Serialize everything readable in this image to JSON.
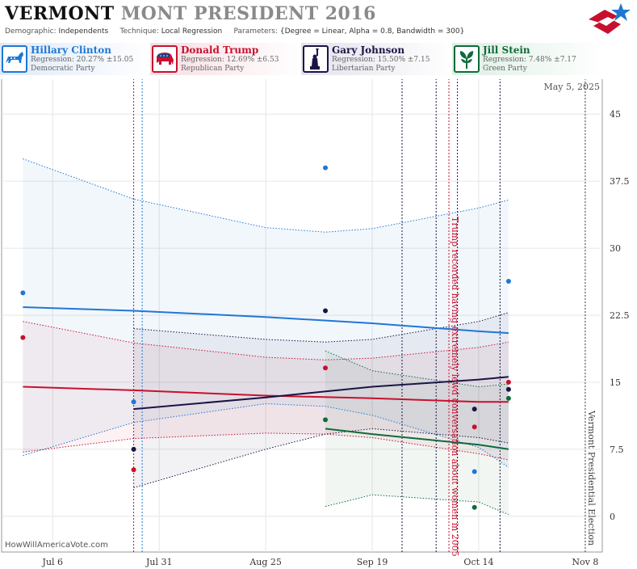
{
  "header": {
    "state": "VERMONT",
    "abbr": "MONT",
    "rest": "PRESIDENT 2016",
    "demographic_label": "Demographic:",
    "demographic": "Independents",
    "technique_label": "Technique:",
    "technique": "Local Regression",
    "parameters_label": "Parameters:",
    "parameters": "{Degree = Linear, Alpha = 0.8, Bandwidth = 300}",
    "date": "May 5, 2025",
    "watermark": "HowWillAmericaVote.com"
  },
  "candidates": [
    {
      "name": "Hillary Clinton",
      "regression": "Regression: 20.27% ±15.05",
      "party": "Democratic Party",
      "color": "#1f77d4",
      "icon": "donkey-icon"
    },
    {
      "name": "Donald Trump",
      "regression": "Regression: 12.69% ±6.53",
      "party": "Republican Party",
      "color": "#c8102e",
      "icon": "elephant-icon"
    },
    {
      "name": "Gary Johnson",
      "regression": "Regression: 15.50% ±7.15",
      "party": "Libertarian Party",
      "color": "#1a1446",
      "icon": "statue-of-liberty-icon"
    },
    {
      "name": "Jill Stein",
      "regression": "Regression: 7.48% ±7.17",
      "party": "Green Party",
      "color": "#0e6b3a",
      "icon": "leaf-icon"
    }
  ],
  "chart_data": {
    "type": "scatter",
    "x_axis": {
      "type": "date",
      "range": [
        "2016-06-24",
        "2016-11-12"
      ],
      "ticks": [
        "Jul 6",
        "Jul 31",
        "Aug 25",
        "Sep 19",
        "Oct 14",
        "Nov 8"
      ]
    },
    "y_axis": {
      "range": [
        -4,
        49
      ],
      "ticks": [
        "0",
        "7.5",
        "15",
        "22.5",
        "30",
        "37.5",
        "45"
      ]
    },
    "grid": true,
    "series": [
      {
        "name": "Hillary Clinton",
        "color": "#1f77d4",
        "points": [
          [
            "2016-06-29",
            25
          ],
          [
            "2016-07-25",
            12.8
          ],
          [
            "2016-09-08",
            39
          ],
          [
            "2016-10-13",
            5
          ],
          [
            "2016-10-21",
            26.3
          ]
        ],
        "trend": [
          [
            "2016-06-29",
            23.4
          ],
          [
            "2016-07-25",
            23
          ],
          [
            "2016-08-25",
            22.3
          ],
          [
            "2016-09-19",
            21.6
          ],
          [
            "2016-10-14",
            20.7
          ],
          [
            "2016-10-21",
            20.5
          ]
        ],
        "upper": [
          [
            "2016-06-29",
            40
          ],
          [
            "2016-07-25",
            35.5
          ],
          [
            "2016-08-25",
            32.3
          ],
          [
            "2016-09-08",
            31.8
          ],
          [
            "2016-09-19",
            32.2
          ],
          [
            "2016-10-14",
            34.5
          ],
          [
            "2016-10-21",
            35.4
          ]
        ],
        "lower": [
          [
            "2016-06-29",
            6.8
          ],
          [
            "2016-07-25",
            10.5
          ],
          [
            "2016-08-25",
            12.6
          ],
          [
            "2016-09-08",
            12.3
          ],
          [
            "2016-09-19",
            11.3
          ],
          [
            "2016-10-14",
            7.7
          ],
          [
            "2016-10-21",
            5.5
          ]
        ]
      },
      {
        "name": "Donald Trump",
        "color": "#c8102e",
        "points": [
          [
            "2016-06-29",
            20
          ],
          [
            "2016-07-25",
            5.2
          ],
          [
            "2016-09-08",
            16.6
          ],
          [
            "2016-10-13",
            10
          ],
          [
            "2016-10-21",
            15
          ]
        ],
        "trend": [
          [
            "2016-06-29",
            14.5
          ],
          [
            "2016-07-25",
            14.1
          ],
          [
            "2016-08-25",
            13.5
          ],
          [
            "2016-09-19",
            13.2
          ],
          [
            "2016-10-14",
            12.8
          ],
          [
            "2016-10-21",
            12.8
          ]
        ],
        "upper": [
          [
            "2016-06-29",
            21.8
          ],
          [
            "2016-07-25",
            19.4
          ],
          [
            "2016-08-25",
            17.8
          ],
          [
            "2016-09-08",
            17.5
          ],
          [
            "2016-09-19",
            17.7
          ],
          [
            "2016-10-14",
            18.9
          ],
          [
            "2016-10-21",
            19.5
          ]
        ],
        "lower": [
          [
            "2016-06-29",
            7.2
          ],
          [
            "2016-07-25",
            8.7
          ],
          [
            "2016-08-25",
            9.3
          ],
          [
            "2016-09-08",
            9.2
          ],
          [
            "2016-09-19",
            8.8
          ],
          [
            "2016-10-14",
            7
          ],
          [
            "2016-10-21",
            6.3
          ]
        ]
      },
      {
        "name": "Gary Johnson",
        "color": "#1a1446",
        "points": [
          [
            "2016-07-25",
            7.5
          ],
          [
            "2016-09-08",
            23
          ],
          [
            "2016-10-13",
            12
          ],
          [
            "2016-10-21",
            14.2
          ]
        ],
        "trend": [
          [
            "2016-07-25",
            12
          ],
          [
            "2016-08-25",
            13.3
          ],
          [
            "2016-09-19",
            14.5
          ],
          [
            "2016-10-14",
            15.3
          ],
          [
            "2016-10-21",
            15.6
          ]
        ],
        "upper": [
          [
            "2016-07-25",
            21
          ],
          [
            "2016-08-25",
            19.8
          ],
          [
            "2016-09-08",
            19.5
          ],
          [
            "2016-09-19",
            19.8
          ],
          [
            "2016-10-14",
            21.8
          ],
          [
            "2016-10-21",
            22.8
          ]
        ],
        "lower": [
          [
            "2016-07-25",
            3.2
          ],
          [
            "2016-08-25",
            7.5
          ],
          [
            "2016-09-08",
            9.2
          ],
          [
            "2016-09-19",
            9.8
          ],
          [
            "2016-10-14",
            8.8
          ],
          [
            "2016-10-21",
            8.2
          ]
        ]
      },
      {
        "name": "Jill Stein",
        "color": "#0e6b3a",
        "points": [
          [
            "2016-09-08",
            10.8
          ],
          [
            "2016-10-13",
            1
          ],
          [
            "2016-10-21",
            13.2
          ]
        ],
        "trend": [
          [
            "2016-09-08",
            9.8
          ],
          [
            "2016-09-19",
            9.2
          ],
          [
            "2016-10-14",
            8
          ],
          [
            "2016-10-21",
            7.5
          ]
        ],
        "upper": [
          [
            "2016-09-08",
            18.5
          ],
          [
            "2016-09-19",
            16.3
          ],
          [
            "2016-10-14",
            14.5
          ],
          [
            "2016-10-21",
            14.8
          ]
        ],
        "lower": [
          [
            "2016-09-08",
            1.1
          ],
          [
            "2016-09-19",
            2.4
          ],
          [
            "2016-10-14",
            1.6
          ],
          [
            "2016-10-21",
            0.2
          ]
        ]
      }
    ],
    "event_lines": [
      {
        "date": "2016-07-25",
        "color": "#c8102e"
      },
      {
        "date": "2016-07-27",
        "color": "#1f77d4"
      },
      {
        "date": "2016-09-26",
        "color": "#1a1446"
      },
      {
        "date": "2016-10-04",
        "color": "#1a1446"
      },
      {
        "date": "2016-10-07",
        "color": "#c8102e",
        "label": "Trump recorded having extremely lewd conversation about women in 2005"
      },
      {
        "date": "2016-10-09",
        "color": "#1a1446"
      },
      {
        "date": "2016-10-19",
        "color": "#1a1446"
      },
      {
        "date": "2016-11-08",
        "color": "#444444",
        "label": "Vermont Presidential Election"
      }
    ]
  }
}
